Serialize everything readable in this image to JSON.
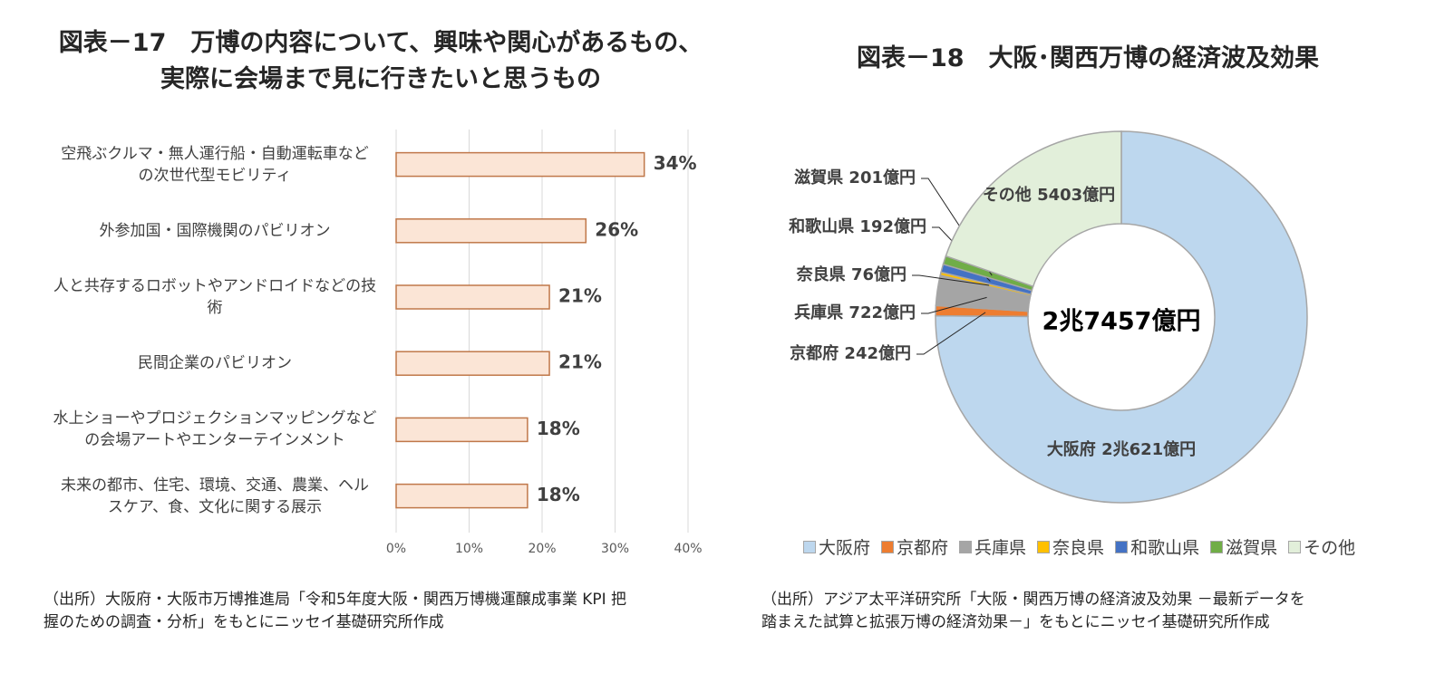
{
  "chart_data": [
    {
      "type": "bar",
      "orientation": "horizontal",
      "title": "図表－17　万博の内容について、興味や関心があるもの、\n実際に会場まで見に行きたいと思うもの",
      "categories": [
        "空飛ぶクルマ・無人運行船・自動運転車など\nの次世代型モビリティ",
        "外参加国・国際機関のパビリオン",
        "人と共存するロボットやアンドロイドなどの技\n術",
        "民間企業のパビリオン",
        "水上ショーやプロジェクションマッピングなど\nの会場アートやエンターテインメント",
        "未来の都市、住宅、環境、交通、農業、ヘル\nスケア、食、文化に関する展示"
      ],
      "values": [
        34,
        26,
        21,
        21,
        18,
        18
      ],
      "value_labels": [
        "34%",
        "26%",
        "21%",
        "21%",
        "18%",
        "18%"
      ],
      "color": "#fbe5d6",
      "edge_color": "#c0784a",
      "xlim": [
        0,
        40
      ],
      "xticks": [
        {
          "value": 0,
          "label": "0%"
        },
        {
          "value": 10,
          "label": "10%"
        },
        {
          "value": 20,
          "label": "20%"
        },
        {
          "value": 30,
          "label": "30%"
        },
        {
          "value": 40,
          "label": "40%"
        }
      ],
      "grid": true,
      "source": "（出所）大阪府・大阪市万博推進局「令和5年度大阪・関西万博機運醸成事業 KPI 把\n握のための調査・分析」をもとにニッセイ基礎研究所作成"
    },
    {
      "type": "donut",
      "title": "図表－18　大阪･関西万博の経済波及効果",
      "categories": [
        "大阪府",
        "京都府",
        "兵庫県",
        "奈良県",
        "和歌山県",
        "滋賀県",
        "その他"
      ],
      "values": [
        20621,
        242,
        722,
        76,
        192,
        201,
        5403
      ],
      "value_labels": [
        "大阪府 2兆621億円",
        "京都府 242億円",
        "兵庫県 722億円",
        "奈良県 76億円",
        "和歌山県 192億円",
        "滋賀県 201億円",
        "その他 5403億円"
      ],
      "colors": [
        "#bdd7ee",
        "#ed7d31",
        "#a5a5a5",
        "#ffc000",
        "#4472c4",
        "#70ad47",
        "#e2efda"
      ],
      "total": 27457,
      "total_label": "2兆7457億円",
      "legend": "bottom",
      "source": "（出所）アジア太平洋研究所「大阪・関西万博の経済波及効果 －最新データを\n踏まえた試算と拡張万博の経済効果－」をもとにニッセイ基礎研究所作成"
    }
  ]
}
